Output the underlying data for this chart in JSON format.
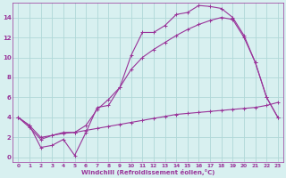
{
  "xlabel": "Windchill (Refroidissement éolien,°C)",
  "xlim": [
    -0.5,
    23.5
  ],
  "ylim": [
    -0.5,
    15.5
  ],
  "xticks": [
    0,
    1,
    2,
    3,
    4,
    5,
    6,
    7,
    8,
    9,
    10,
    11,
    12,
    13,
    14,
    15,
    16,
    17,
    18,
    19,
    20,
    21,
    22,
    23
  ],
  "yticks": [
    0,
    2,
    4,
    6,
    8,
    10,
    12,
    14
  ],
  "bg_color": "#d8f0f0",
  "grid_color": "#b0d8d8",
  "line_color": "#993399",
  "curve1_x": [
    0,
    1,
    2,
    3,
    4,
    5,
    6,
    7,
    8,
    9,
    10,
    11,
    12,
    13,
    14,
    15,
    16,
    17,
    18,
    19,
    20,
    21,
    22,
    23
  ],
  "curve1_y": [
    4.0,
    3.2,
    1.0,
    1.2,
    1.8,
    0.2,
    2.5,
    5.0,
    5.2,
    7.0,
    10.2,
    12.5,
    12.5,
    13.2,
    14.3,
    14.5,
    15.2,
    15.1,
    14.9,
    14.0,
    12.2,
    9.5,
    6.0,
    4.0
  ],
  "curve2_x": [
    0,
    1,
    2,
    3,
    4,
    5,
    6,
    7,
    8,
    9,
    10,
    11,
    12,
    13,
    14,
    15,
    16,
    17,
    18,
    19,
    20,
    21,
    22,
    23
  ],
  "curve2_y": [
    4.0,
    3.0,
    1.8,
    2.2,
    2.5,
    2.5,
    3.2,
    4.8,
    5.8,
    7.0,
    8.8,
    10.0,
    10.8,
    11.5,
    12.2,
    12.8,
    13.3,
    13.7,
    14.0,
    13.8,
    12.0,
    9.5,
    6.0,
    4.0
  ],
  "curve3_x": [
    0,
    1,
    2,
    3,
    4,
    5,
    6,
    7,
    8,
    9,
    10,
    11,
    12,
    13,
    14,
    15,
    16,
    17,
    18,
    19,
    20,
    21,
    22,
    23
  ],
  "curve3_y": [
    4.0,
    3.2,
    2.0,
    2.2,
    2.4,
    2.5,
    2.7,
    2.9,
    3.1,
    3.3,
    3.5,
    3.7,
    3.9,
    4.1,
    4.3,
    4.4,
    4.5,
    4.6,
    4.7,
    4.8,
    4.9,
    5.0,
    5.2,
    5.5
  ]
}
